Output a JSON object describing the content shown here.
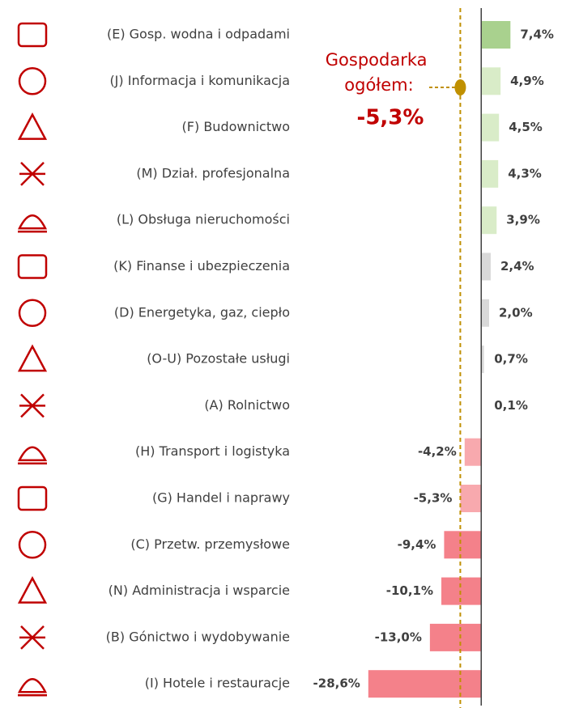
{
  "chart_data": {
    "type": "bar",
    "orientation": "horizontal",
    "categories": [
      "(E) Gosp. wodna i odpadami",
      "(J) Informacja i komunikacja",
      "(F) Budownictwo",
      "(M) Dział. profesjonalna",
      "(L) Obsługa nieruchomości",
      "(K) Finanse i ubezpieczenia",
      "(D) Energetyka, gaz, ciepło",
      "(O-U) Pozostałe usługi",
      "(A) Rolnictwo",
      "(H) Transport i logistyka",
      "(G) Handel i naprawy",
      "(C) Przetw. przemysłowe",
      "(N) Administracja i wsparcie",
      "(B) Gónictwo i wydobywanie",
      "(I) Hotele i restauracje"
    ],
    "values": [
      7.4,
      4.9,
      4.5,
      4.3,
      3.9,
      2.4,
      2.0,
      0.7,
      0.1,
      -4.2,
      -5.3,
      -9.4,
      -10.1,
      -13.0,
      -28.6
    ],
    "value_labels": [
      "7,4%",
      "4,9%",
      "4,5%",
      "4,3%",
      "3,9%",
      "2,4%",
      "2,0%",
      "0,7%",
      "0,1%",
      "-4,2%",
      "-5,3%",
      "-9,4%",
      "-10,1%",
      "-13,0%",
      "-28,6%"
    ],
    "colors": [
      "#a9d18e",
      "#d9ecc8",
      "#d9ecc8",
      "#d9ecc8",
      "#d9ecc8",
      "#d9d9d9",
      "#d9d9d9",
      "#d9d9d9",
      "#d9d9d9",
      "#f8a9ae",
      "#f8a9ae",
      "#f4818a",
      "#f4818a",
      "#f4818a",
      "#f4818a"
    ],
    "xlim": [
      -30,
      10
    ],
    "annotation": {
      "lines": [
        "Gospodarka",
        "ogółem:"
      ],
      "value": -5.3,
      "value_label": "-5,3%",
      "color": "#c00000",
      "line_color": "#c09000"
    }
  }
}
